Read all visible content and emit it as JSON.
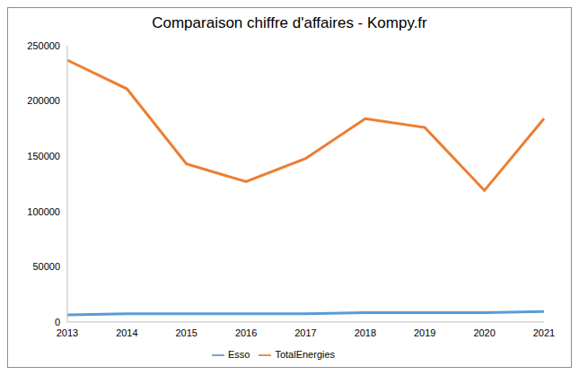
{
  "chart_data": {
    "type": "line",
    "title": "Comparaison chiffre d'affaires - Kompy.fr",
    "categories": [
      "2013",
      "2014",
      "2015",
      "2016",
      "2017",
      "2018",
      "2019",
      "2020",
      "2021"
    ],
    "series": [
      {
        "name": "Esso",
        "color": "#5b9bd5",
        "values": [
          6500,
          7500,
          7500,
          7500,
          7500,
          8500,
          8500,
          8500,
          9500
        ]
      },
      {
        "name": "TotalEnergies",
        "color": "#ed7d31",
        "values": [
          237000,
          211000,
          143000,
          127000,
          148000,
          184000,
          176000,
          119000,
          184000
        ]
      }
    ],
    "ylim": [
      0,
      250000
    ],
    "yticks": [
      0,
      50000,
      100000,
      150000,
      200000,
      250000
    ],
    "grid": false,
    "legend": "bottom"
  }
}
